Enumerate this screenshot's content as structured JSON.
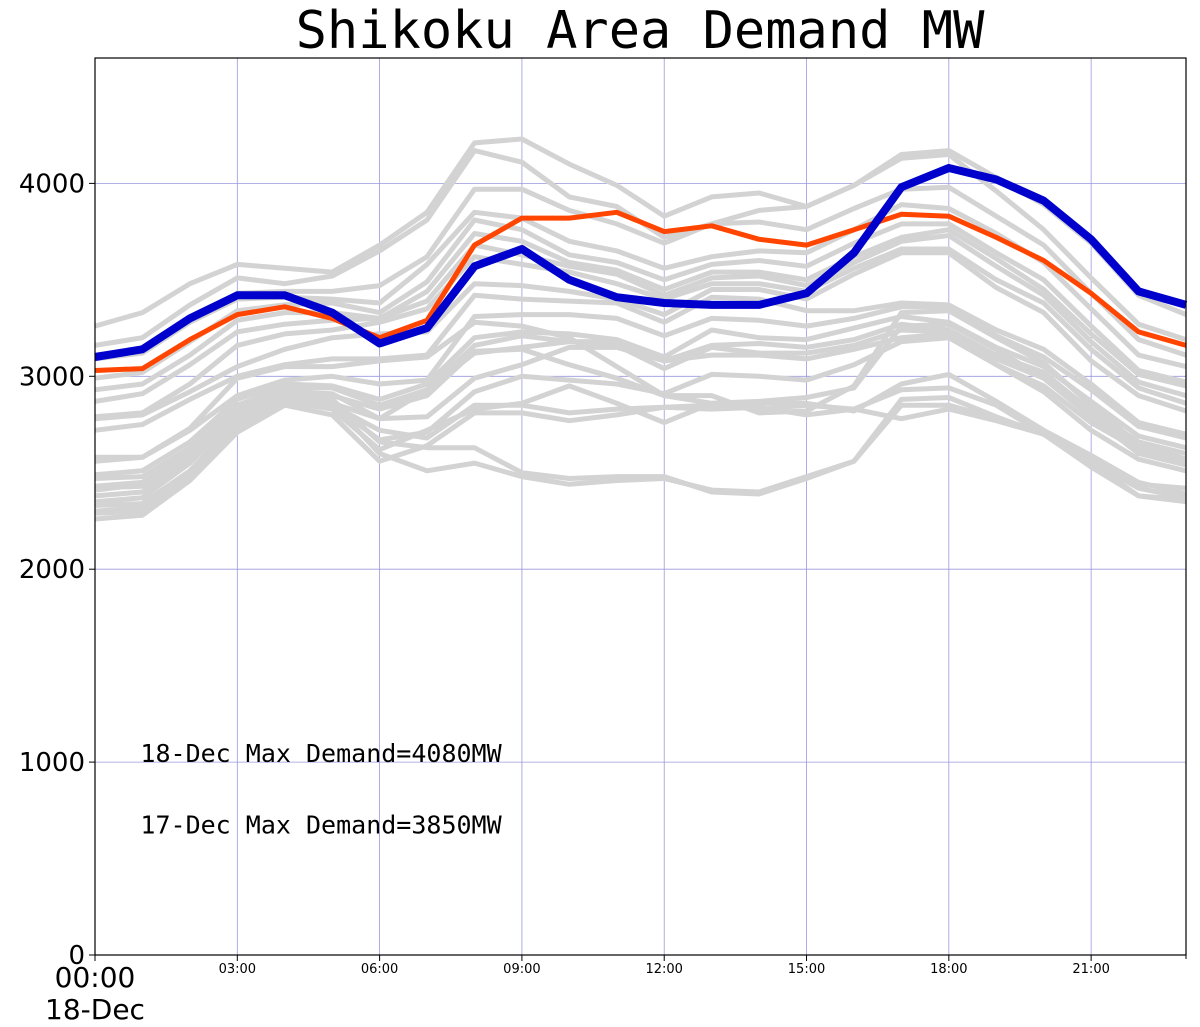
{
  "chart_data": {
    "type": "line",
    "title": "Shikoku Area Demand MW",
    "xlabel": "",
    "ylabel": "",
    "xlim": [
      0,
      23
    ],
    "ylim": [
      0,
      4650
    ],
    "grid": true,
    "y_ticks": [
      0,
      1000,
      2000,
      3000,
      4000
    ],
    "x_ticks": [
      {
        "hour": 0,
        "label": "00:00",
        "sublabel": "18-Dec"
      },
      {
        "hour": 3,
        "label": "03:00"
      },
      {
        "hour": 6,
        "label": "06:00"
      },
      {
        "hour": 9,
        "label": "09:00"
      },
      {
        "hour": 12,
        "label": "12:00"
      },
      {
        "hour": 15,
        "label": "15:00"
      },
      {
        "hour": 18,
        "label": "18:00"
      },
      {
        "hour": 21,
        "label": "21:00"
      }
    ],
    "x": [
      0,
      1,
      2,
      3,
      4,
      5,
      6,
      7,
      8,
      9,
      10,
      11,
      12,
      13,
      14,
      15,
      16,
      17,
      18,
      19,
      20,
      21,
      22,
      23
    ],
    "series": [
      {
        "color": "#0000cc",
        "width": 8,
        "values": [
          3100,
          3140,
          3300,
          3420,
          3420,
          3330,
          3170,
          3250,
          3570,
          3660,
          3500,
          3410,
          3380,
          3370,
          3370,
          3430,
          3640,
          3980,
          4080,
          4020,
          3910,
          3710,
          3440,
          3370
        ]
      },
      {
        "color": "#ff4500",
        "width": 5,
        "values": [
          3030,
          3040,
          3190,
          3320,
          3360,
          3300,
          3200,
          3290,
          3680,
          3820,
          3820,
          3850,
          3750,
          3780,
          3710,
          3680,
          3760,
          3840,
          3830,
          3720,
          3600,
          3430,
          3230,
          3160
        ]
      }
    ],
    "background_series_color": "#d3d3d3",
    "background_series": [
      [
        3260,
        3330,
        3480,
        3580,
        3560,
        3540,
        3680,
        3850,
        4210,
        4230,
        4100,
        3990,
        3830,
        3930,
        3950,
        3880,
        3990,
        4150,
        4170,
        4030,
        3890,
        3690,
        3420,
        3320
      ],
      [
        3160,
        3200,
        3370,
        3510,
        3480,
        3520,
        3650,
        3810,
        4170,
        4110,
        3930,
        3880,
        3720,
        3790,
        3860,
        3880,
        3990,
        4130,
        4150,
        3960,
        3760,
        3510,
        3270,
        3190
      ],
      [
        3110,
        3140,
        3290,
        3430,
        3440,
        3440,
        3470,
        3620,
        3970,
        3970,
        3860,
        3790,
        3690,
        3790,
        3800,
        3760,
        3870,
        3970,
        3980,
        3830,
        3680,
        3430,
        3190,
        3110
      ],
      [
        3090,
        3120,
        3280,
        3400,
        3410,
        3400,
        3380,
        3580,
        3850,
        3820,
        3700,
        3650,
        3560,
        3620,
        3650,
        3640,
        3760,
        3890,
        3870,
        3740,
        3590,
        3350,
        3110,
        3050
      ],
      [
        2990,
        3020,
        3180,
        3340,
        3370,
        3380,
        3330,
        3490,
        3810,
        3760,
        3630,
        3590,
        3500,
        3580,
        3600,
        3570,
        3690,
        3790,
        3790,
        3640,
        3500,
        3260,
        3030,
        2970
      ],
      [
        2930,
        2960,
        3110,
        3290,
        3330,
        3330,
        3300,
        3440,
        3740,
        3700,
        3590,
        3550,
        3450,
        3540,
        3540,
        3500,
        3620,
        3720,
        3760,
        3610,
        3450,
        3220,
        3010,
        2950
      ],
      [
        2870,
        2910,
        3060,
        3230,
        3270,
        3290,
        3300,
        3390,
        3680,
        3630,
        3570,
        3530,
        3420,
        3510,
        3520,
        3470,
        3590,
        3700,
        3730,
        3570,
        3420,
        3180,
        2970,
        2900
      ],
      [
        2790,
        2810,
        2960,
        3160,
        3220,
        3240,
        3280,
        3350,
        3620,
        3580,
        3540,
        3480,
        3400,
        3480,
        3480,
        3440,
        3560,
        3660,
        3660,
        3500,
        3380,
        3140,
        2940,
        2860
      ],
      [
        2780,
        2800,
        2920,
        3050,
        3140,
        3200,
        3220,
        3230,
        3480,
        3470,
        3440,
        3400,
        3320,
        3450,
        3450,
        3400,
        3530,
        3640,
        3640,
        3460,
        3330,
        3080,
        2900,
        2820
      ],
      [
        2720,
        2750,
        2880,
        3000,
        3060,
        3090,
        3090,
        3110,
        3420,
        3400,
        3390,
        3380,
        3280,
        3410,
        3400,
        3340,
        3340,
        3380,
        3370,
        3240,
        3140,
        2960,
        2760,
        2700
      ],
      [
        2560,
        2580,
        2720,
        2900,
        2980,
        3000,
        2960,
        2980,
        3310,
        3320,
        3320,
        3300,
        3210,
        3300,
        3290,
        3260,
        3300,
        3360,
        3360,
        3210,
        3100,
        2930,
        2740,
        2680
      ],
      [
        2490,
        2510,
        2660,
        2880,
        2960,
        2950,
        2880,
        2960,
        3200,
        3230,
        3220,
        3190,
        3100,
        3240,
        3200,
        3190,
        3250,
        3310,
        3280,
        3150,
        3050,
        2870,
        2690,
        2630
      ],
      [
        2470,
        2480,
        2630,
        2850,
        2940,
        2940,
        2850,
        2930,
        3160,
        3210,
        3180,
        3180,
        3080,
        3160,
        3170,
        3150,
        3190,
        3270,
        3240,
        3110,
        3020,
        2820,
        2660,
        2600
      ],
      [
        2430,
        2450,
        2600,
        2810,
        2920,
        2910,
        2780,
        2930,
        3120,
        3150,
        3180,
        3160,
        3040,
        3150,
        3120,
        3120,
        3160,
        3240,
        3230,
        3090,
        2990,
        2800,
        2630,
        2570
      ],
      [
        2380,
        2400,
        2570,
        2790,
        2900,
        2860,
        2780,
        2790,
        2990,
        3060,
        3150,
        3150,
        3080,
        3110,
        3110,
        3090,
        3140,
        3200,
        3220,
        3060,
        2950,
        2760,
        2620,
        2550
      ],
      [
        2330,
        2340,
        2510,
        2770,
        2890,
        2850,
        2670,
        2710,
        2920,
        3000,
        2980,
        2960,
        2910,
        3010,
        3000,
        2980,
        3060,
        3180,
        3200,
        3060,
        2920,
        2720,
        2570,
        2510
      ],
      [
        2290,
        2300,
        2490,
        2740,
        2870,
        2830,
        2620,
        2720,
        2830,
        2860,
        2950,
        2860,
        2760,
        2860,
        2860,
        2860,
        2820,
        2960,
        3010,
        2870,
        2720,
        2590,
        2450,
        2390
      ],
      [
        2260,
        2280,
        2460,
        2710,
        2850,
        2800,
        2560,
        2640,
        2810,
        2810,
        2770,
        2800,
        2840,
        2830,
        2840,
        2800,
        2830,
        2930,
        2940,
        2850,
        2700,
        2560,
        2420,
        2370
      ],
      [
        2410,
        2440,
        2620,
        2820,
        2870,
        2850,
        2720,
        2680,
        2850,
        2850,
        2810,
        2830,
        2840,
        2850,
        2830,
        2850,
        2830,
        2780,
        2830,
        2770,
        2700,
        2530,
        2380,
        2350
      ],
      [
        2580,
        2580,
        2730,
        2990,
        3050,
        3050,
        3080,
        3100,
        3280,
        3260,
        3200,
        3050,
        2900,
        2900,
        2810,
        2820,
        2950,
        3330,
        3340,
        3200,
        3070,
        2850,
        2650,
        2570
      ],
      [
        2420,
        2430,
        2590,
        2840,
        2930,
        2900,
        2830,
        2900,
        3130,
        3140,
        3060,
        2990,
        2900,
        2860,
        2870,
        2890,
        2940,
        3260,
        3270,
        3140,
        2990,
        2790,
        2600,
        2540
      ],
      [
        2350,
        2370,
        2550,
        2800,
        2910,
        2880,
        2660,
        2630,
        2630,
        2500,
        2470,
        2480,
        2480,
        2400,
        2390,
        2470,
        2560,
        2850,
        2850,
        2780,
        2710,
        2570,
        2440,
        2420
      ],
      [
        2300,
        2320,
        2500,
        2740,
        2880,
        2860,
        2600,
        2510,
        2550,
        2480,
        2440,
        2460,
        2470,
        2410,
        2400,
        2480,
        2560,
        2880,
        2890,
        2790,
        2700,
        2550,
        2380,
        2360
      ]
    ],
    "annotations": [
      {
        "text": "18-Dec Max Demand=4080MW",
        "x": 1,
        "y": 1000
      },
      {
        "text": "17-Dec Max Demand=3850MW",
        "x": 1,
        "y": 630
      }
    ]
  }
}
